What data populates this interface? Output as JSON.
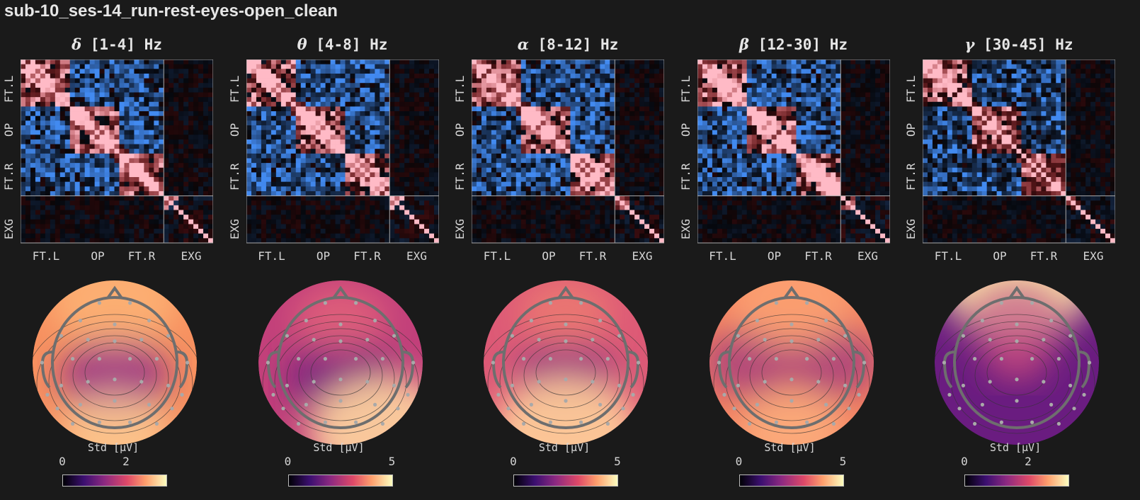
{
  "title": "sub-10_ses-14_run-rest-eyes-open_clean",
  "chart_data": [
    {
      "type": "heatmap+topomap",
      "symbol": "δ",
      "title": "[1-4] Hz",
      "groups": [
        "FT.L",
        "OP",
        "FT.R",
        "EXG"
      ],
      "colorbar_label": "Std [µV]",
      "colorbar_ticks": [
        "0",
        "2"
      ],
      "colormap": "magma",
      "topo_pattern": "orange-high-periphery-purple-center"
    },
    {
      "type": "heatmap+topomap",
      "symbol": "θ",
      "title": "[4-8] Hz",
      "groups": [
        "FT.L",
        "OP",
        "FT.R",
        "EXG"
      ],
      "colorbar_label": "Std [µV]",
      "colorbar_ticks": [
        "0",
        "5"
      ],
      "colormap": "magma",
      "topo_pattern": "magenta-with-light-occipital"
    },
    {
      "type": "heatmap+topomap",
      "symbol": "α",
      "title": "[8-12] Hz",
      "groups": [
        "FT.L",
        "OP",
        "FT.R",
        "EXG"
      ],
      "colorbar_label": "Std [µV]",
      "colorbar_ticks": [
        "0",
        "5"
      ],
      "colormap": "magma",
      "topo_pattern": "pink-with-light-occipital"
    },
    {
      "type": "heatmap+topomap",
      "symbol": "β",
      "title": "[12-30] Hz",
      "groups": [
        "FT.L",
        "OP",
        "FT.R",
        "EXG"
      ],
      "colorbar_label": "Std [µV]",
      "colorbar_ticks": [
        "0",
        "5"
      ],
      "colormap": "magma",
      "topo_pattern": "orange-with-purple-temporal"
    },
    {
      "type": "heatmap+topomap",
      "symbol": "γ",
      "title": "[30-45] Hz",
      "groups": [
        "FT.L",
        "OP",
        "FT.R",
        "EXG"
      ],
      "colorbar_label": "Std [µV]",
      "colorbar_ticks": [
        "0",
        "2"
      ],
      "colormap": "magma",
      "topo_pattern": "purple-with-light-frontal"
    }
  ],
  "colors": {
    "positive": "#ff9aa8",
    "negative": "#3f7fe0",
    "background": "#1a1a1a"
  }
}
